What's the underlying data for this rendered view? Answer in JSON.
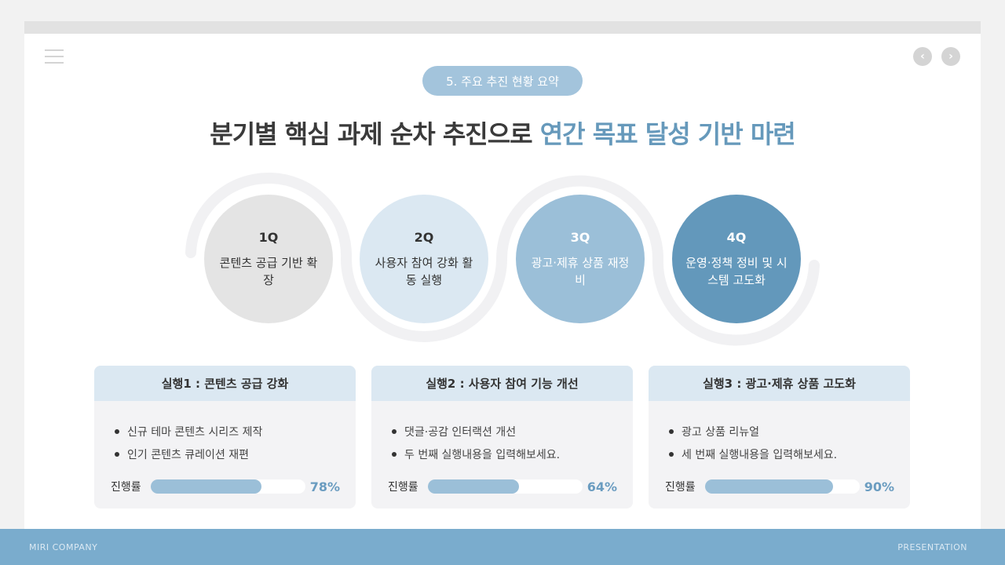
{
  "header": {
    "badge": "5. 주요 추진 현황 요약",
    "title_main": "분기별 핵심 과제 순차 추진으로 ",
    "title_highlight": "연간 목표 달성 기반 마련",
    "prev_icon": "chevron-left-icon",
    "next_icon": "chevron-right-icon",
    "menu_icon": "hamburger-icon"
  },
  "quarters": [
    {
      "q": "1Q",
      "text": "콘텐츠 공급 기반 확장",
      "bg": "#e4e4e4",
      "fg": "#333333"
    },
    {
      "q": "2Q",
      "text": "사용자 참여 강화 활동 실행",
      "bg": "#dbe8f2",
      "fg": "#333333"
    },
    {
      "q": "3Q",
      "text": "광고·제휴 상품 재정비",
      "bg": "#9bbfd8",
      "fg": "#ffffff"
    },
    {
      "q": "4Q",
      "text": "운영·정책 정비 및 시스템 고도화",
      "bg": "#6398bb",
      "fg": "#ffffff"
    }
  ],
  "cards": [
    {
      "title": "실행1 : 콘텐츠 공급 강화",
      "items": [
        "신규 테마 콘텐츠 시리즈 제작",
        "인기 콘텐츠 큐레이션 재편"
      ],
      "progress_label": "진행률",
      "progress": 78,
      "progress_text": "78%"
    },
    {
      "title": "실행2 : 사용자 참여 기능 개선",
      "items": [
        "댓글·공감 인터랙션 개선",
        "두 번째 실행내용을 입력해보세요."
      ],
      "progress_label": "진행률",
      "progress": 64,
      "progress_text": "64%"
    },
    {
      "title": "실행3 : 광고·제휴 상품 고도화",
      "items": [
        "광고 상품 리뉴얼",
        "세 번째 실행내용을 입력해보세요."
      ],
      "progress_label": "진행률",
      "progress": 90,
      "progress_text": "90%"
    }
  ],
  "footer": {
    "left": "MIRI COMPANY",
    "right": "PRESENTATION"
  }
}
